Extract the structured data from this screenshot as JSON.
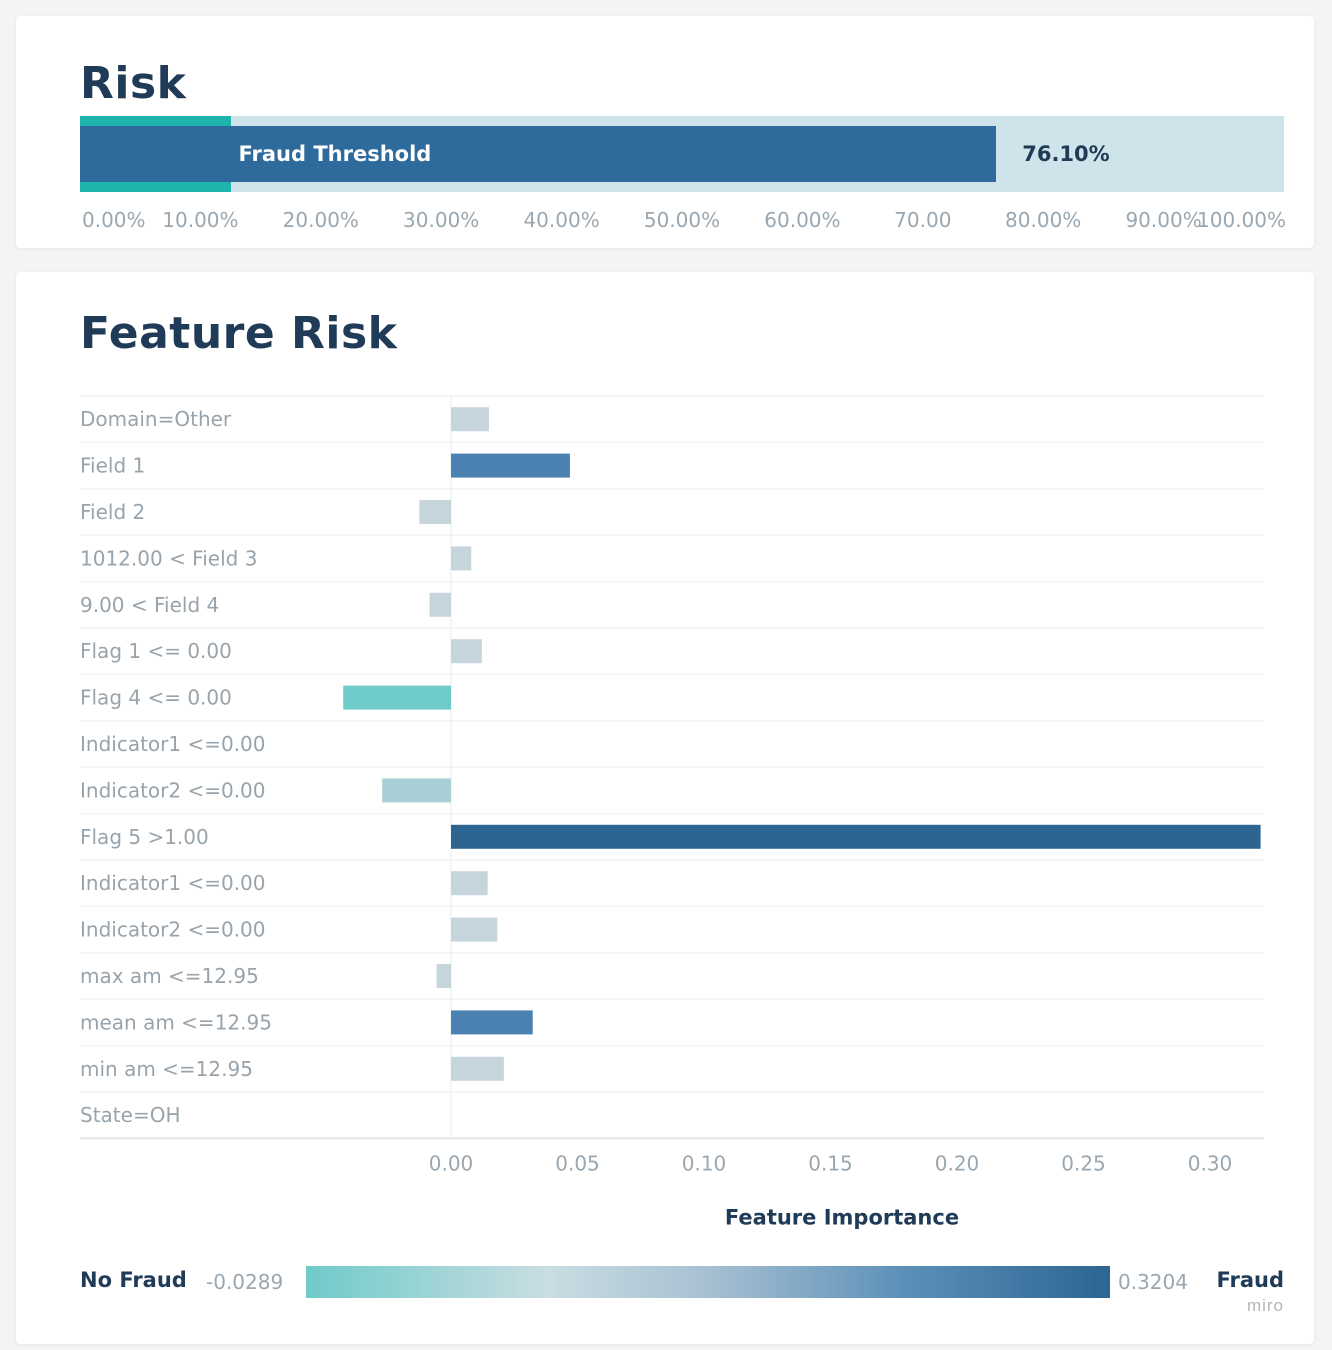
{
  "risk": {
    "title": "Risk",
    "threshold_label": "Fraud Threshold",
    "threshold_value": 0.125,
    "value": 0.761,
    "value_label": "76.10%",
    "ticks": [
      "0.00%",
      "10.00%",
      "20.00%",
      "30.00%",
      "40.00%",
      "50.00%",
      "60.00%",
      "70.00",
      "80.00%",
      "90.00%",
      "100.00%"
    ],
    "colors": {
      "track": "#cfe4ea",
      "threshold": "#1fb3ae",
      "fill": "#2e6a9c"
    }
  },
  "feature_risk": {
    "title": "Feature Risk"
  },
  "legend": {
    "left_label": "No Fraud",
    "min_label": "-0.0289",
    "max_label": "0.3204",
    "right_label": "Fraud"
  },
  "watermark": "miro",
  "chart_data": {
    "type": "bar",
    "orientation": "horizontal",
    "title": "Feature Risk",
    "xlabel": "Feature Importance",
    "ylabel": "",
    "xlim": [
      -0.147,
      0.32
    ],
    "xticks": [
      0.0,
      0.05,
      0.1,
      0.15,
      0.2,
      0.25,
      0.3
    ],
    "xtick_labels": [
      "0.00",
      "0.05",
      "0.10",
      "0.15",
      "0.20",
      "0.25",
      "0.30"
    ],
    "grid": true,
    "categories": [
      "Domain=Other",
      "Field 1",
      "Field 2",
      "1012.00 < Field 3",
      "9.00 < Field 4",
      "Flag 1 <= 0.00",
      "Flag 4 <= 0.00",
      "Indicator1 <=0.00",
      "Indicator2 <=0.00",
      "Flag 5 >1.00",
      "Indicator1 <=0.00",
      "Indicator2 <=0.00",
      "max am <=12.95",
      "mean am <=12.95",
      "min am <=12.95",
      "State=OH"
    ],
    "values": [
      0.015,
      0.047,
      -0.0125,
      0.008,
      -0.0085,
      0.0122,
      -0.0426,
      0.0,
      -0.0272,
      0.32,
      0.0145,
      0.0183,
      -0.0057,
      0.0323,
      0.0209,
      0.0
    ],
    "colors": [
      "#c6d5dc",
      "#4a80b2",
      "#c6d5dc",
      "#c6d5dc",
      "#c6d5dc",
      "#c6d5dc",
      "#6fcbc9",
      "#c6d5dc",
      "#a9cfd6",
      "#2d6592",
      "#c6d5dc",
      "#c6d5dc",
      "#c6d5dc",
      "#4a80b2",
      "#c6d5dc",
      "#c6d5dc"
    ],
    "color_scale": {
      "min": -0.0289,
      "max": 0.3204
    }
  }
}
